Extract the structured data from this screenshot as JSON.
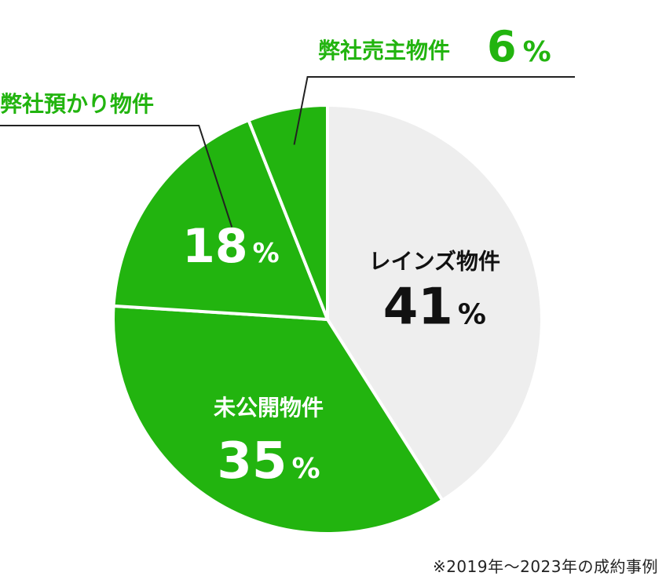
{
  "chart_data": {
    "type": "pie",
    "title": "",
    "slices": [
      {
        "label": "レインズ物件",
        "value": 41,
        "color": "#eeeeee",
        "label_color": "#111111",
        "pct_color": "#111111"
      },
      {
        "label": "未公開物件",
        "value": 35,
        "color": "#22b40f",
        "label_color": "#ffffff",
        "pct_color": "#ffffff"
      },
      {
        "label": "弊社預かり物件",
        "value": 18,
        "color": "#22b40f",
        "label_color": "#22b40f",
        "pct_color": "#ffffff"
      },
      {
        "label": "弊社売主物件",
        "value": 6,
        "color": "#22b40f",
        "label_color": "#22b40f",
        "pct_color": "#22b40f"
      }
    ],
    "unit": "%",
    "start": "12 o'clock",
    "direction": "clockwise"
  },
  "footnote": "※2019年〜2023年の成約事例"
}
